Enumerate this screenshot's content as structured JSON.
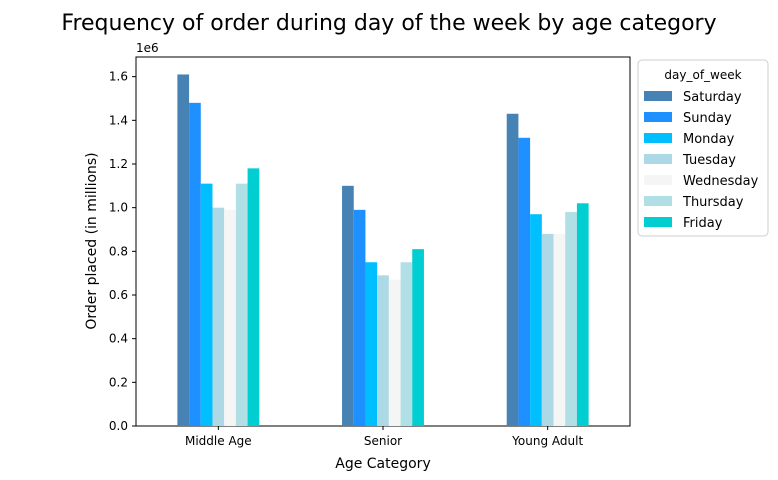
{
  "chart_data": {
    "type": "bar",
    "title": "Frequency of order during day of the week by age category",
    "xlabel": "Age Category",
    "ylabel": "Order placed (in millions)",
    "y_offset_label": "1e6",
    "ylim": [
      0,
      1.69
    ],
    "yticks": [
      "0.0",
      "0.2",
      "0.4",
      "0.6",
      "0.8",
      "1.0",
      "1.2",
      "1.4",
      "1.6"
    ],
    "categories": [
      "Middle Age",
      "Senior",
      "Young Adult"
    ],
    "legend": {
      "title": "day_of_week",
      "position": "outside-upper-right"
    },
    "series": [
      {
        "name": "Saturday",
        "color": "#4682B4",
        "values": [
          1.61,
          1.1,
          1.43
        ]
      },
      {
        "name": "Sunday",
        "color": "#1E90FF",
        "values": [
          1.48,
          0.99,
          1.32
        ]
      },
      {
        "name": "Monday",
        "color": "#00BFFF",
        "values": [
          1.11,
          0.75,
          0.97
        ]
      },
      {
        "name": "Tuesday",
        "color": "#ADD8E6",
        "values": [
          1.0,
          0.69,
          0.88
        ]
      },
      {
        "name": "Wednesday",
        "color": "#F5F5F5",
        "values": [
          0.99,
          0.67,
          0.88
        ]
      },
      {
        "name": "Thursday",
        "color": "#B0E0E6",
        "values": [
          1.11,
          0.75,
          0.98
        ]
      },
      {
        "name": "Friday",
        "color": "#00CED1",
        "values": [
          1.18,
          0.81,
          1.02
        ]
      }
    ],
    "grid": false
  }
}
